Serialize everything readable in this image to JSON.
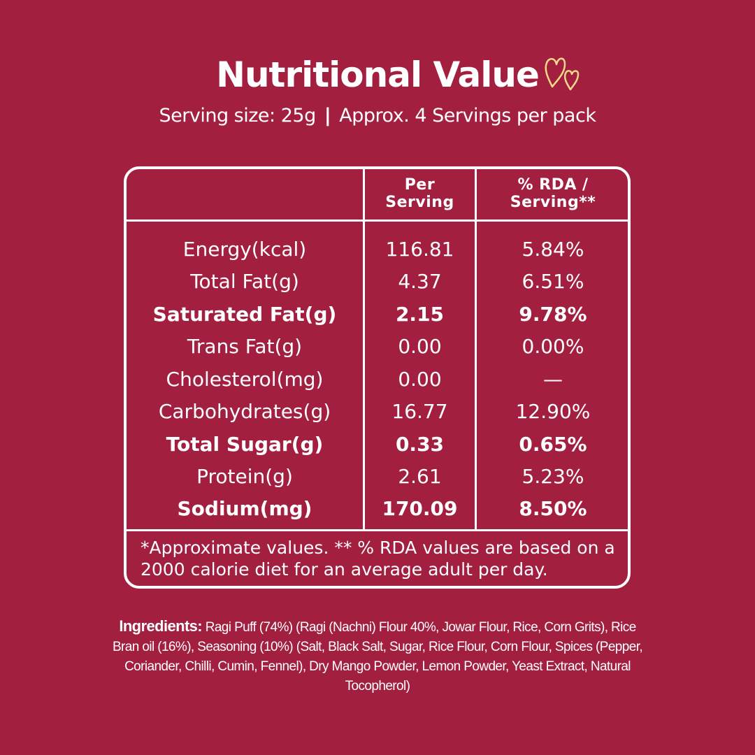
{
  "title": "Nutritional Value",
  "icons": {
    "decoration": "hearts-icon"
  },
  "serving": {
    "size": "Serving size: 25g",
    "separator": "|",
    "servings": "Approx. 4 Servings per pack"
  },
  "table": {
    "columns": [
      "",
      "Per Serving",
      "% RDA / Serving**"
    ],
    "column_lines": [
      [
        "Per",
        "Serving"
      ],
      [
        "% RDA /",
        "Serving**"
      ]
    ],
    "rows": [
      {
        "nutrient": "Energy(kcal)",
        "per_serving": "116.81",
        "rda": "5.84%",
        "bold": false
      },
      {
        "nutrient": "Total Fat(g)",
        "per_serving": "4.37",
        "rda": "6.51%",
        "bold": false
      },
      {
        "nutrient": "Saturated Fat(g)",
        "per_serving": "2.15",
        "rda": "9.78%",
        "bold": true
      },
      {
        "nutrient": "Trans Fat(g)",
        "per_serving": "0.00",
        "rda": "0.00%",
        "bold": false
      },
      {
        "nutrient": "Cholesterol(mg)",
        "per_serving": "0.00",
        "rda": "—",
        "bold": false
      },
      {
        "nutrient": "Carbohydrates(g)",
        "per_serving": "16.77",
        "rda": "12.90%",
        "bold": false
      },
      {
        "nutrient": "Total Sugar(g)",
        "per_serving": "0.33",
        "rda": "0.65%",
        "bold": true
      },
      {
        "nutrient": "Protein(g)",
        "per_serving": "2.61",
        "rda": "5.23%",
        "bold": false
      },
      {
        "nutrient": "Sodium(mg)",
        "per_serving": "170.09",
        "rda": "8.50%",
        "bold": true
      }
    ],
    "footnote": "*Approximate values. ** % RDA values are based on a 2000 calorie diet for an average adult per day."
  },
  "ingredients": {
    "label": "Ingredients:",
    "text": "Ragi Puff (74%) (Ragi (Nachni) Flour 40%, Jowar Flour, Rice, Corn Grits), Rice Bran oil (16%), Seasoning (10%) (Salt, Black Salt, Sugar, Rice Flour, Corn Flour, Spices (Pepper, Coriander, Chilli, Cumin, Fennel), Dry Mango Powder, Lemon Powder, Yeast Extract, Natural Tocopherol)"
  },
  "colors": {
    "background": "#a31f3f",
    "text": "#ffffff",
    "accent": "#f2d98a"
  }
}
